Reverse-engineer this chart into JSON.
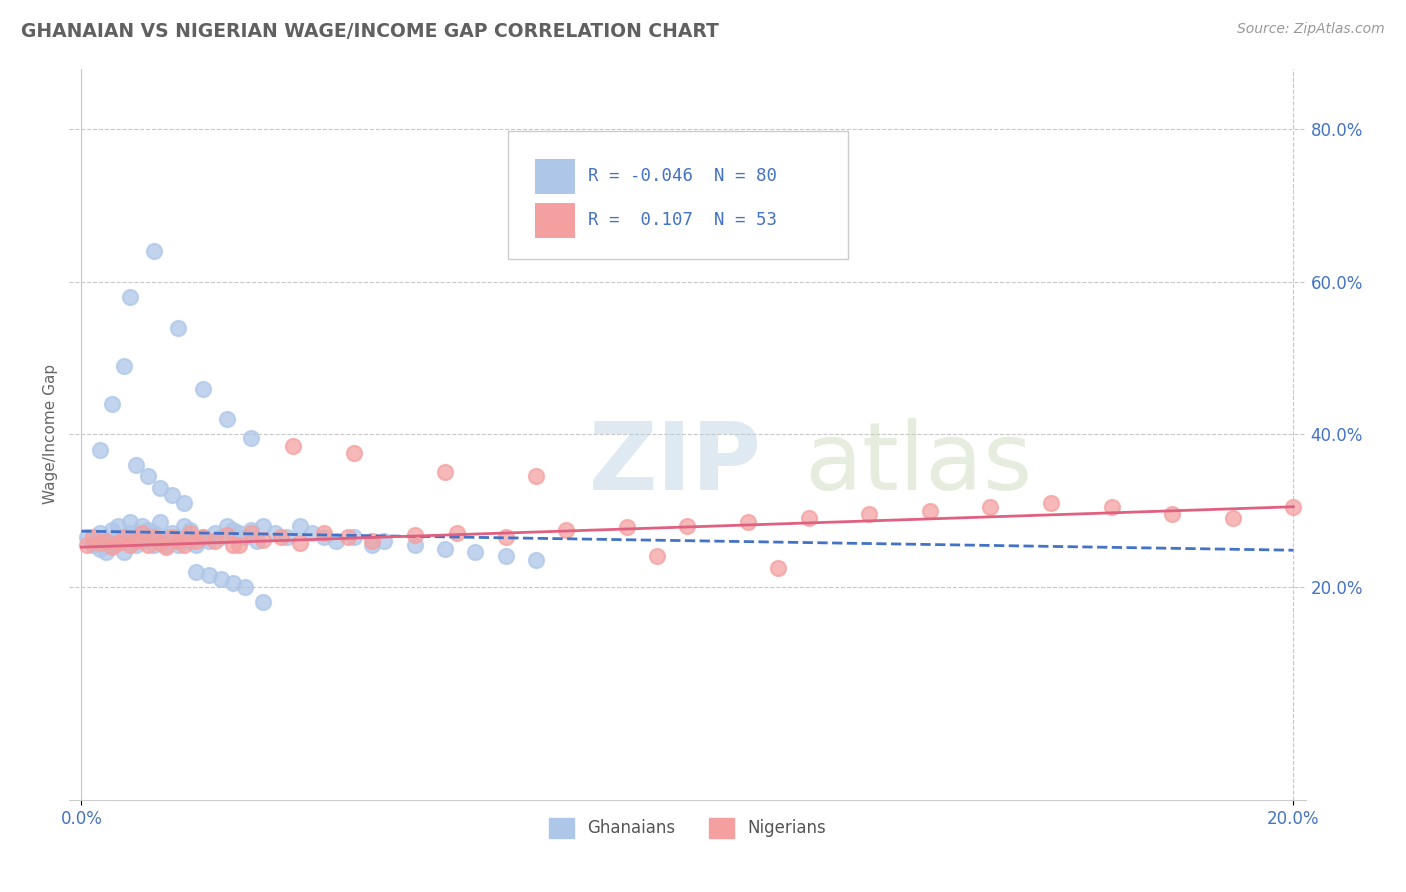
{
  "title": "GHANAIAN VS NIGERIAN WAGE/INCOME GAP CORRELATION CHART",
  "source": "Source: ZipAtlas.com",
  "ylabel": "Wage/Income Gap",
  "xlim": [
    -0.002,
    0.202
  ],
  "ylim": [
    -0.08,
    0.88
  ],
  "y_ticks_right": [
    0.2,
    0.4,
    0.6,
    0.8
  ],
  "y_tick_labels_right": [
    "20.0%",
    "40.0%",
    "60.0%",
    "80.0%"
  ],
  "ghanaian_color": "#aec6e8",
  "nigerian_color": "#f4a0a0",
  "ghanaian_line_color": "#4472c4",
  "nigerian_line_color": "#e06080",
  "watermark_zip": "ZIP",
  "watermark_atlas": "atlas",
  "background_color": "#ffffff",
  "grid_color": "#c8c8c8",
  "title_color": "#606060",
  "tick_color": "#4472c4",
  "ghanaian_scatter_x": [
    0.001,
    0.002,
    0.003,
    0.003,
    0.004,
    0.004,
    0.005,
    0.005,
    0.006,
    0.006,
    0.007,
    0.007,
    0.008,
    0.008,
    0.009,
    0.009,
    0.01,
    0.01,
    0.01,
    0.011,
    0.011,
    0.012,
    0.012,
    0.013,
    0.013,
    0.014,
    0.014,
    0.015,
    0.015,
    0.016,
    0.016,
    0.017,
    0.018,
    0.018,
    0.019,
    0.02,
    0.021,
    0.022,
    0.023,
    0.024,
    0.025,
    0.026,
    0.027,
    0.028,
    0.029,
    0.03,
    0.032,
    0.034,
    0.036,
    0.038,
    0.04,
    0.042,
    0.045,
    0.048,
    0.05,
    0.055,
    0.06,
    0.065,
    0.07,
    0.075,
    0.003,
    0.005,
    0.007,
    0.009,
    0.011,
    0.013,
    0.015,
    0.017,
    0.019,
    0.021,
    0.023,
    0.025,
    0.027,
    0.03,
    0.012,
    0.008,
    0.016,
    0.02,
    0.024,
    0.028
  ],
  "ghanaian_scatter_y": [
    0.265,
    0.255,
    0.27,
    0.25,
    0.26,
    0.245,
    0.255,
    0.275,
    0.265,
    0.28,
    0.26,
    0.245,
    0.27,
    0.285,
    0.265,
    0.255,
    0.27,
    0.28,
    0.26,
    0.265,
    0.275,
    0.255,
    0.27,
    0.26,
    0.285,
    0.265,
    0.255,
    0.27,
    0.26,
    0.265,
    0.255,
    0.28,
    0.275,
    0.26,
    0.255,
    0.265,
    0.26,
    0.27,
    0.265,
    0.28,
    0.275,
    0.27,
    0.265,
    0.275,
    0.26,
    0.28,
    0.27,
    0.265,
    0.28,
    0.27,
    0.265,
    0.26,
    0.265,
    0.255,
    0.26,
    0.255,
    0.25,
    0.245,
    0.24,
    0.235,
    0.38,
    0.44,
    0.49,
    0.36,
    0.345,
    0.33,
    0.32,
    0.31,
    0.22,
    0.215,
    0.21,
    0.205,
    0.2,
    0.18,
    0.64,
    0.58,
    0.54,
    0.46,
    0.42,
    0.395
  ],
  "nigerian_scatter_x": [
    0.001,
    0.002,
    0.003,
    0.004,
    0.005,
    0.006,
    0.007,
    0.008,
    0.009,
    0.01,
    0.011,
    0.012,
    0.013,
    0.014,
    0.015,
    0.016,
    0.017,
    0.018,
    0.019,
    0.02,
    0.022,
    0.024,
    0.026,
    0.028,
    0.03,
    0.033,
    0.036,
    0.04,
    0.044,
    0.048,
    0.055,
    0.062,
    0.07,
    0.08,
    0.09,
    0.1,
    0.11,
    0.12,
    0.13,
    0.14,
    0.15,
    0.16,
    0.17,
    0.18,
    0.19,
    0.2,
    0.025,
    0.035,
    0.045,
    0.06,
    0.075,
    0.095,
    0.115
  ],
  "nigerian_scatter_y": [
    0.255,
    0.265,
    0.258,
    0.26,
    0.252,
    0.258,
    0.265,
    0.255,
    0.26,
    0.27,
    0.255,
    0.265,
    0.258,
    0.252,
    0.265,
    0.26,
    0.255,
    0.27,
    0.26,
    0.265,
    0.26,
    0.268,
    0.255,
    0.27,
    0.262,
    0.265,
    0.258,
    0.27,
    0.265,
    0.26,
    0.268,
    0.27,
    0.265,
    0.275,
    0.278,
    0.28,
    0.285,
    0.29,
    0.295,
    0.3,
    0.305,
    0.31,
    0.305,
    0.295,
    0.29,
    0.305,
    0.255,
    0.385,
    0.375,
    0.35,
    0.345,
    0.24,
    0.225
  ],
  "gh_trend_x0": 0.0,
  "gh_trend_y0": 0.273,
  "gh_trend_x1": 0.2,
  "gh_trend_y1": 0.248,
  "ni_trend_x0": 0.0,
  "ni_trend_y0": 0.252,
  "ni_trend_x1": 0.2,
  "ni_trend_y1": 0.305
}
